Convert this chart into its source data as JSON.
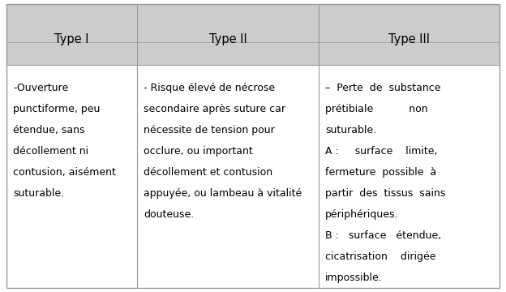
{
  "header_bg": "#cccccc",
  "header_text_color": "#000000",
  "cell_bg": "#ffffff",
  "border_color": "#999999",
  "font_size_header": 10.5,
  "font_size_body": 9.0,
  "headers": [
    "Type I",
    "Type II",
    "Type III"
  ],
  "col1_text": "-Ouverture\npunctiforme, peu\nétendue, sans\ndécollement ni\ncontusion, aisément\nsuturable.",
  "col2_text": "- Risque élevé de nécrose\nsecondaire après suture car\nnécessite de tension pour\nocclure, ou important\ndécollement et contusion\nappuyée, ou lambeau à vitalité\ndouteuse.",
  "col3_lines": [
    [
      "- ",
      "Perte",
      " de ",
      "substance"
    ],
    [
      "prétibiale",
      "non"
    ],
    [
      "suturable."
    ],
    [
      "A :",
      "surface",
      "limite,"
    ],
    [
      "fermeture",
      "possible",
      "à"
    ],
    [
      "partir",
      "des",
      "tissus",
      "sains"
    ],
    [
      "périphériques."
    ],
    [
      "B :",
      "surface",
      "étendue,"
    ],
    [
      "cicatrisation",
      "dirigée"
    ],
    [
      "impossible."
    ]
  ],
  "col3_justified": [
    "–  Perte  de  substance",
    "prétibiale           non",
    "suturable.",
    "A :     surface    limite,",
    "fermeture  possible  à",
    "partir  des  tissus  sains",
    "périphériques.",
    "B :   surface   étendue,",
    "cicatrisation    dirigée",
    "impossible."
  ],
  "fig_bg": "#ffffff",
  "fig_width": 6.24,
  "fig_height": 3.6,
  "dpi": 100
}
